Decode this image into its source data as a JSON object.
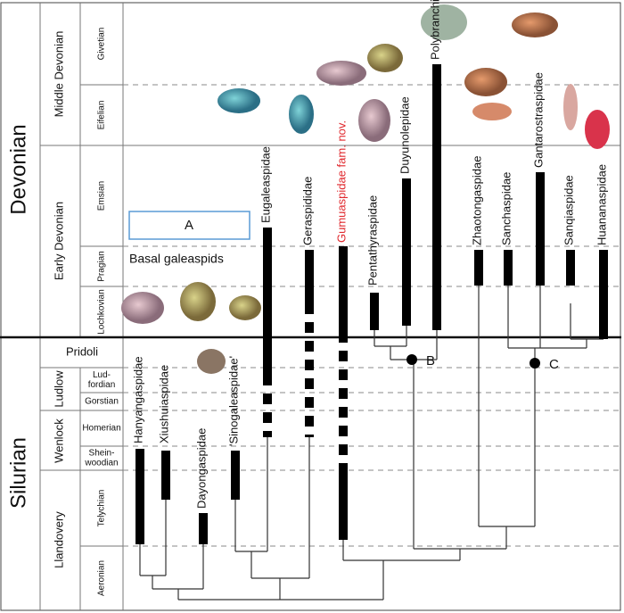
{
  "periods": [
    "Devonian",
    "Silurian"
  ],
  "epochs": [
    "Middle Devonian",
    "Early Devonian",
    "Pridoli",
    "Ludlow",
    "Wenlock",
    "Llandovery"
  ],
  "stages": [
    [
      "Givetian"
    ],
    [
      "Eifelian"
    ],
    [
      "Emsian"
    ],
    [
      "Pragian"
    ],
    [
      "Lochkovian"
    ],
    [
      "Lud-",
      "fordian"
    ],
    [
      "Gorstian"
    ],
    [
      "Homerian"
    ],
    [
      "Shein-",
      "woodian"
    ],
    [
      "Telychian"
    ],
    [
      "Aeronian"
    ]
  ],
  "taxa": [
    "Hanyangaspidae",
    "Xiushuiaspidae",
    "Dayongaspidae",
    "'Sinogaleaspidae'",
    "Eugaleaspidae",
    "Geraspididae",
    "Gumuaspidae fam. nov.",
    "Pentathyraspidae",
    "Duyunolepidae",
    "Polybranchiaspidae",
    "Zhaotongaspidae",
    "Sanchaspidae",
    "Gantarostraspidae",
    "Sanqiaspidae",
    "Huananaspidae"
  ],
  "labels": {
    "box": "A",
    "node_b": "B",
    "node_c": "C",
    "basal": "Basal galeaspids"
  }
}
